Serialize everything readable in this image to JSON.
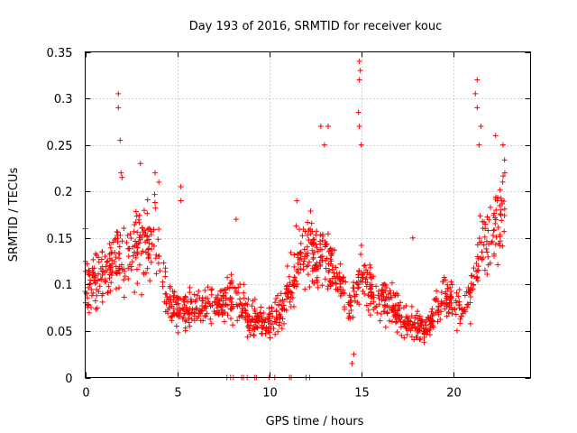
{
  "chart_data": {
    "type": "scatter",
    "title": "Day 193 of 2016, SRMTID for receiver kouc",
    "xlabel": "GPS time / hours",
    "ylabel": "SRMTID / TECUs",
    "xlim": [
      0,
      24.2
    ],
    "ylim": [
      0,
      0.35
    ],
    "xticks": [
      0,
      5,
      10,
      15,
      20
    ],
    "xtick_labels": [
      "0",
      "5",
      "10",
      "15",
      "20"
    ],
    "yticks": [
      0,
      0.05,
      0.1,
      0.15,
      0.2,
      0.25,
      0.3,
      0.35
    ],
    "ytick_labels": [
      "0",
      "0.05",
      "0.1",
      "0.15",
      "0.2",
      "0.25",
      "0.3",
      "0.35"
    ],
    "grid": true,
    "marker": "+",
    "color": "#ff0000",
    "profile_note": "approximate trend of dense scatter (hour, typical SRMTID)",
    "profile": [
      [
        0.0,
        0.1
      ],
      [
        1.0,
        0.11
      ],
      [
        2.0,
        0.13
      ],
      [
        3.0,
        0.14
      ],
      [
        3.8,
        0.15
      ],
      [
        4.5,
        0.08
      ],
      [
        5.5,
        0.07
      ],
      [
        6.5,
        0.08
      ],
      [
        7.5,
        0.08
      ],
      [
        8.2,
        0.09
      ],
      [
        9.0,
        0.06
      ],
      [
        10.0,
        0.06
      ],
      [
        10.8,
        0.08
      ],
      [
        11.5,
        0.12
      ],
      [
        12.2,
        0.14
      ],
      [
        13.0,
        0.13
      ],
      [
        13.8,
        0.1
      ],
      [
        14.5,
        0.07
      ],
      [
        15.0,
        0.12
      ],
      [
        15.7,
        0.09
      ],
      [
        16.5,
        0.08
      ],
      [
        17.5,
        0.06
      ],
      [
        18.5,
        0.05
      ],
      [
        19.5,
        0.09
      ],
      [
        20.5,
        0.07
      ],
      [
        21.0,
        0.09
      ],
      [
        21.5,
        0.14
      ],
      [
        22.0,
        0.15
      ],
      [
        22.5,
        0.17
      ],
      [
        22.8,
        0.18
      ]
    ],
    "outliers": [
      [
        0.0,
        0.16
      ],
      [
        1.8,
        0.305
      ],
      [
        1.8,
        0.29
      ],
      [
        1.9,
        0.255
      ],
      [
        1.95,
        0.22
      ],
      [
        2.0,
        0.215
      ],
      [
        3.0,
        0.23
      ],
      [
        3.8,
        0.22
      ],
      [
        4.0,
        0.21
      ],
      [
        5.2,
        0.205
      ],
      [
        5.2,
        0.19
      ],
      [
        8.2,
        0.17
      ],
      [
        11.5,
        0.19
      ],
      [
        12.8,
        0.27
      ],
      [
        13.2,
        0.27
      ],
      [
        13.0,
        0.25
      ],
      [
        14.9,
        0.34
      ],
      [
        14.95,
        0.33
      ],
      [
        14.9,
        0.32
      ],
      [
        14.85,
        0.285
      ],
      [
        14.9,
        0.27
      ],
      [
        15.0,
        0.25
      ],
      [
        17.8,
        0.15
      ],
      [
        21.3,
        0.32
      ],
      [
        21.2,
        0.305
      ],
      [
        21.3,
        0.29
      ],
      [
        21.5,
        0.27
      ],
      [
        21.4,
        0.25
      ],
      [
        22.3,
        0.26
      ],
      [
        22.7,
        0.25
      ],
      [
        22.8,
        0.22
      ],
      [
        14.5,
        0.015
      ],
      [
        14.6,
        0.025
      ]
    ],
    "zero_values_x": [
      7.7,
      7.9,
      8.05,
      8.5,
      8.6,
      8.8,
      9.2,
      9.3,
      10.0,
      10.3,
      11.1,
      11.2,
      12.0,
      12.2
    ]
  }
}
